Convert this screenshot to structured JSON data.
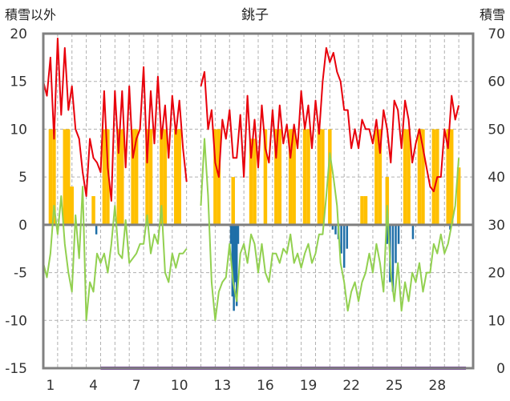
{
  "chart_data": {
    "type": "line",
    "title": "銚子",
    "ylabel_left": "積雪以外",
    "ylabel_right": "積雪",
    "ylim_left": [
      -15,
      20
    ],
    "ylim_right": [
      0,
      70
    ],
    "yticks_left": [
      "20",
      "15",
      "10",
      "5",
      "0",
      "-5",
      "-10",
      "-15"
    ],
    "yticks_right": [
      "70",
      "60",
      "50",
      "40",
      "30",
      "20",
      "10",
      "0"
    ],
    "xlim": [
      0,
      30
    ],
    "x_tick_labels": [
      {
        "day": 1,
        "label": "1"
      },
      {
        "day": 4,
        "label": "4"
      },
      {
        "day": 7,
        "label": "7"
      },
      {
        "day": 10,
        "label": "10"
      },
      {
        "day": 13,
        "label": "13"
      },
      {
        "day": 16,
        "label": "16"
      },
      {
        "day": 19,
        "label": "19"
      },
      {
        "day": 22,
        "label": "22"
      },
      {
        "day": 25,
        "label": "25"
      },
      {
        "day": 28,
        "label": "28"
      }
    ],
    "grid": true,
    "colors": {
      "temperature": "#e8000b",
      "dewpoint": "#92d050",
      "sunshine": "#ffc000",
      "precipitation": "#1f6fa8",
      "snow": "#7030a0",
      "zero_line": "#7f7f7f",
      "frame": "#808080"
    },
    "series": [
      {
        "key": "temperature",
        "axis": "left",
        "x": [
          0,
          0.25,
          0.5,
          0.75,
          1,
          1.25,
          1.5,
          1.75,
          2,
          2.25,
          2.5,
          2.75,
          3,
          3.25,
          3.5,
          3.75,
          4,
          4.25,
          4.5,
          4.75,
          5,
          5.25,
          5.5,
          5.75,
          6,
          6.25,
          6.5,
          6.75,
          7,
          7.25,
          7.5,
          7.75,
          8,
          8.25,
          8.5,
          8.75,
          9,
          9.25,
          9.5,
          9.75,
          10
        ],
        "y": [
          15,
          13.5,
          17.5,
          9,
          19.5,
          11.5,
          18.5,
          12,
          14.5,
          10,
          9,
          5.5,
          3,
          9,
          7,
          6.5,
          5.5,
          14,
          6,
          2.5,
          14,
          7.5,
          14,
          6,
          14.5,
          7,
          9,
          10,
          16.5,
          6.5,
          14,
          8.5,
          15.5,
          9,
          12.5,
          7,
          13.5,
          9.5,
          13,
          8,
          4.5
        ]
      },
      {
        "key": "temperature",
        "axis": "left",
        "x": [
          11,
          11.25,
          11.5,
          11.75,
          12,
          12.25,
          12.5,
          12.75,
          13,
          13.25,
          13.5,
          13.75,
          14,
          14.25,
          14.5,
          14.75,
          15,
          15.25,
          15.5,
          15.75,
          16,
          16.25,
          16.5,
          16.75,
          17,
          17.25,
          17.5,
          17.75,
          18,
          18.25,
          18.5,
          18.75,
          19,
          19.25,
          19.5,
          19.75,
          20,
          20.25,
          20.5,
          20.75,
          21,
          21.25,
          21.5,
          21.75,
          22,
          22.25,
          22.5,
          22.75,
          23,
          23.25,
          23.5,
          23.75,
          24,
          24.25,
          24.5,
          24.75,
          25,
          25.25,
          25.5,
          25.75,
          26,
          26.25,
          26.5,
          26.75,
          27,
          27.25,
          27.5,
          27.75,
          28,
          28.25,
          28.5,
          28.75,
          29
        ],
        "y": [
          14.5,
          16,
          10,
          12,
          6.5,
          5,
          11,
          9,
          12,
          7,
          7,
          11.5,
          5,
          13.5,
          7,
          11,
          6,
          12.5,
          8,
          6.5,
          12,
          7,
          12.5,
          8.5,
          10.5,
          7,
          10.5,
          8,
          14,
          10,
          12.5,
          8,
          13,
          9.5,
          15,
          18.5,
          17,
          18,
          16,
          15,
          12,
          12,
          8,
          10,
          8,
          11,
          10,
          10,
          8.5,
          11,
          7.5,
          12,
          10,
          6.5,
          13,
          12,
          8,
          13,
          11,
          6.5,
          8.5,
          10,
          8,
          6,
          4,
          3.5,
          5,
          5,
          10,
          8,
          13.5,
          11,
          12.5
        ]
      },
      {
        "key": "dewpoint",
        "axis": "left",
        "x": [
          0,
          0.25,
          0.5,
          0.75,
          1,
          1.25,
          1.5,
          1.75,
          2,
          2.25,
          2.5,
          2.75,
          3,
          3.25,
          3.5,
          3.75,
          4,
          4.25,
          4.5,
          4.75,
          5,
          5.25,
          5.5,
          5.75,
          6,
          6.25,
          6.5,
          6.75,
          7,
          7.25,
          7.5,
          7.75,
          8,
          8.25,
          8.5,
          8.75,
          9,
          9.25,
          9.5,
          9.75,
          10
        ],
        "y": [
          -4,
          -5.5,
          -3,
          2,
          -1,
          3,
          -2,
          -5,
          -7,
          1,
          -3.5,
          4,
          -10,
          -6,
          -7,
          -3,
          -4,
          -3,
          -5,
          -2,
          2,
          -3,
          -3.5,
          0.5,
          -4,
          -3.5,
          -3,
          -2,
          -2,
          1,
          -3,
          -1,
          -2,
          2,
          -5,
          -6,
          -3,
          -4.5,
          -3,
          -3,
          -2.5
        ]
      },
      {
        "key": "dewpoint",
        "axis": "left",
        "x": [
          11,
          11.25,
          11.5,
          11.75,
          12,
          12.25,
          12.5,
          12.75,
          13,
          13.25,
          13.5,
          13.75,
          14,
          14.25,
          14.5,
          14.75,
          15,
          15.25,
          15.5,
          15.75,
          16,
          16.25,
          16.5,
          16.75,
          17,
          17.25,
          17.5,
          17.75,
          18,
          18.25,
          18.5,
          18.75,
          19,
          19.25,
          19.5,
          19.75,
          20,
          20.25,
          20.5,
          20.75,
          21,
          21.25,
          21.5,
          21.75,
          22,
          22.25,
          22.5,
          22.75,
          23,
          23.25,
          23.5,
          23.75,
          24,
          24.25,
          24.5,
          24.75,
          25,
          25.25,
          25.5,
          25.75,
          26,
          26.25,
          26.5,
          26.75,
          27,
          27.25,
          27.5,
          27.75,
          28,
          28.25,
          28.5,
          28.75,
          29
        ],
        "y": [
          2,
          9,
          3,
          -6,
          -10,
          -7,
          -6,
          -5.5,
          -2,
          -6,
          -8,
          -3,
          -2,
          -4,
          -1,
          -2,
          -5,
          -2,
          -5,
          -6,
          -3,
          -3,
          -4,
          -2.5,
          -3,
          -1,
          -4,
          -3,
          -4.5,
          -3,
          -2,
          -4,
          -3,
          -1,
          -1,
          3,
          7.5,
          5,
          2,
          -4,
          -6,
          -9,
          -7,
          -6,
          -8,
          -6,
          -5,
          -3,
          -5,
          -2,
          -4,
          -7,
          2,
          -5,
          -8,
          -4,
          -9,
          -6,
          -8,
          -5,
          -6,
          -4,
          -7,
          -5,
          -5,
          -2,
          -3,
          -1,
          -3,
          -2,
          0,
          2,
          7
        ]
      },
      {
        "key": "sunshine",
        "axis": "left",
        "type": "bar",
        "x": [
          0.5,
          0.75,
          1.5,
          1.75,
          2,
          3.5,
          4.25,
          4.5,
          5.25,
          5.5,
          6.25,
          6.5,
          7.25,
          7.5,
          8.25,
          8.5,
          9.25,
          9.5,
          12,
          12.25,
          13.25,
          14.5,
          14.75,
          15.5,
          16.25,
          16.5,
          17.25,
          17.5,
          18.25,
          18.5,
          19.25,
          19.5,
          20,
          22.25,
          22.5,
          23.25,
          23.5,
          24,
          25.25,
          25.5,
          26.25,
          26.5,
          27.25,
          27.5,
          28.25,
          28.5,
          29
        ],
        "y": [
          10,
          10,
          10,
          10,
          4,
          3,
          10,
          10,
          10,
          10,
          10,
          10,
          10,
          10,
          10,
          10,
          10,
          10,
          10,
          10,
          5,
          9,
          9,
          10,
          10,
          10,
          10,
          10,
          10,
          10,
          10,
          10,
          10,
          3,
          3,
          10,
          10,
          5,
          10,
          10,
          10,
          10,
          10,
          10,
          10,
          10,
          6
        ]
      },
      {
        "key": "precipitation",
        "axis": "left",
        "type": "bar",
        "x": [
          3.7,
          13.1,
          13.2,
          13.3,
          13.4,
          13.5,
          13.6,
          20.2,
          20.4,
          20.6,
          20.8,
          21,
          21.2,
          24,
          24.2,
          24.4,
          24.6,
          24.8,
          25.8,
          28.4
        ],
        "y": [
          -1,
          -2,
          -7.5,
          -9,
          -6,
          -8.5,
          -2,
          -0.5,
          -1,
          -1.5,
          -3,
          -4.5,
          -2.5,
          -2,
          -6,
          -7,
          -4,
          -2,
          -1.5,
          -0.5
        ]
      },
      {
        "key": "snow",
        "axis": "right",
        "x": [
          4,
          29.5
        ],
        "y": [
          0,
          0
        ]
      }
    ]
  }
}
